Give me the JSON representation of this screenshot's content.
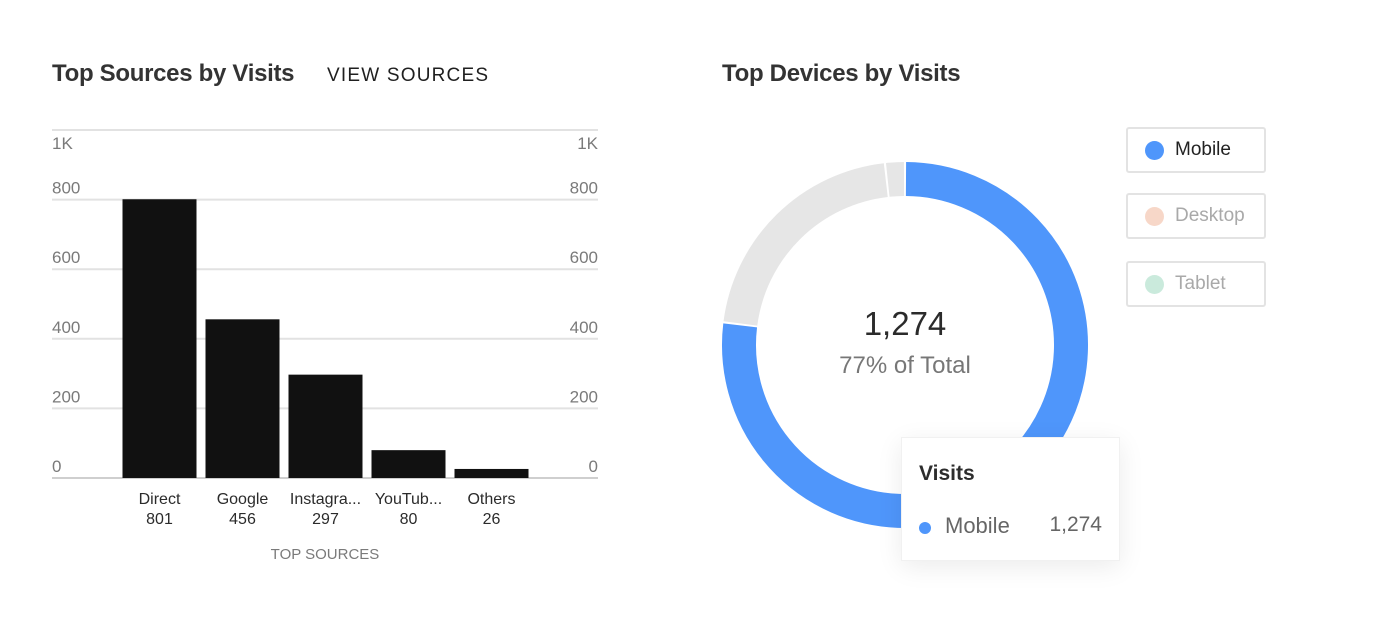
{
  "sources_panel": {
    "title": "Top Sources by Visits",
    "view_link": "VIEW SOURCES"
  },
  "devices_panel": {
    "title": "Top Devices by Visits",
    "center_value": "1,274",
    "center_caption": "77% of Total",
    "legend": [
      {
        "label": "Mobile",
        "active": true
      },
      {
        "label": "Desktop",
        "active": false
      },
      {
        "label": "Tablet",
        "active": false
      }
    ],
    "tooltip": {
      "title": "Visits",
      "label": "Mobile",
      "value": "1,274"
    }
  },
  "colors": {
    "bar": "#111111",
    "mobile": "#4f96fb",
    "desktop": "#f0b79a",
    "tablet": "#9ed8bf",
    "inactive_ring": "#e6e6e6",
    "grid": "#e2e2e2",
    "axis_text": "#7a7a7a"
  },
  "chart_data": [
    {
      "type": "bar",
      "title": "Top Sources by Visits",
      "xlabel": "TOP SOURCES",
      "ylabel": "",
      "categories": [
        "Direct",
        "Google",
        "Instagra...",
        "YouTub...",
        "Others"
      ],
      "values": [
        801,
        456,
        297,
        80,
        26
      ],
      "value_labels": [
        "801",
        "456",
        "297",
        "80",
        "26"
      ],
      "ylim": [
        0,
        1000
      ],
      "yticks": [
        0,
        200,
        400,
        600,
        800,
        1000
      ],
      "ytick_labels": [
        "0",
        "200",
        "400",
        "600",
        "800",
        "1K"
      ],
      "grid": true
    },
    {
      "type": "pie",
      "title": "Top Devices by Visits",
      "donut": true,
      "categories": [
        "Mobile",
        "Desktop",
        "Tablet"
      ],
      "values": [
        1274,
        352,
        29
      ],
      "percent_labels": [
        "77%"
      ],
      "active": [
        "Mobile"
      ]
    }
  ]
}
